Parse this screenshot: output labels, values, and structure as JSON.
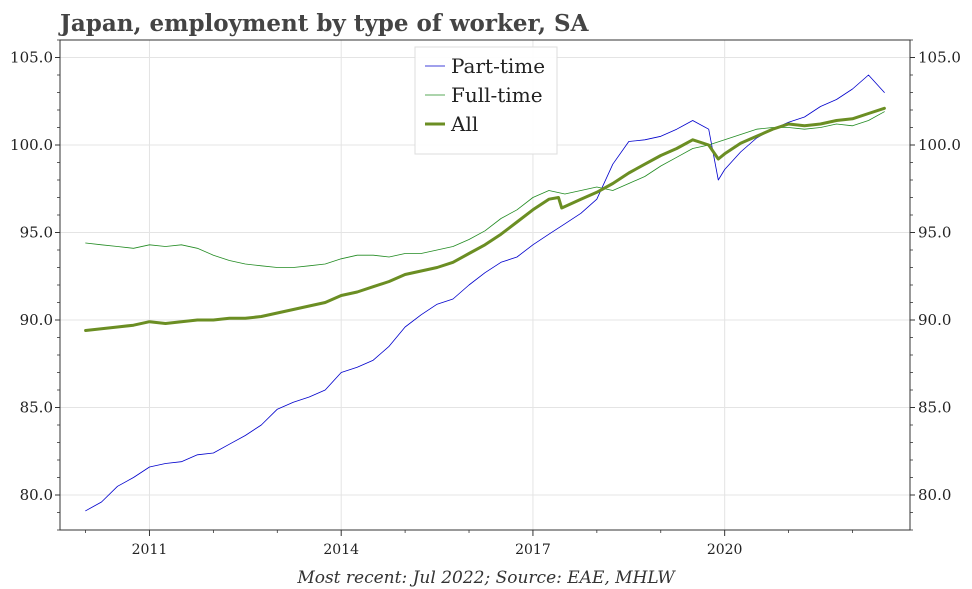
{
  "chart_data": {
    "type": "line",
    "title": "Japan, employment by type of worker, SA",
    "footer": "Most recent: Jul 2022; Source: EAE, MHLW",
    "xlabel": "",
    "ylabel": "",
    "xlim": [
      2009.6,
      2022.9
    ],
    "ylim": [
      78.0,
      106.0
    ],
    "x_ticks": [
      2011,
      2014,
      2017,
      2020
    ],
    "x_tick_labels": [
      "2011",
      "2014",
      "2017",
      "2020"
    ],
    "y_ticks": [
      80,
      85,
      90,
      95,
      100,
      105
    ],
    "y_tick_labels": [
      "80.0",
      "85.0",
      "90.0",
      "95.0",
      "100.0",
      "105.0"
    ],
    "grid": true,
    "legend_position": "top-center",
    "series": [
      {
        "name": "Part-time",
        "color": "#0000cc",
        "line_width": 0.8,
        "points": [
          [
            2010.0,
            79.1
          ],
          [
            2010.25,
            79.6
          ],
          [
            2010.5,
            80.5
          ],
          [
            2010.75,
            81.0
          ],
          [
            2011.0,
            81.6
          ],
          [
            2011.25,
            81.8
          ],
          [
            2011.5,
            81.9
          ],
          [
            2011.75,
            82.3
          ],
          [
            2012.0,
            82.4
          ],
          [
            2012.25,
            82.9
          ],
          [
            2012.5,
            83.4
          ],
          [
            2012.75,
            84.0
          ],
          [
            2013.0,
            84.9
          ],
          [
            2013.25,
            85.3
          ],
          [
            2013.5,
            85.6
          ],
          [
            2013.75,
            86.0
          ],
          [
            2014.0,
            87.0
          ],
          [
            2014.25,
            87.3
          ],
          [
            2014.5,
            87.7
          ],
          [
            2014.75,
            88.5
          ],
          [
            2015.0,
            89.6
          ],
          [
            2015.25,
            90.3
          ],
          [
            2015.5,
            90.9
          ],
          [
            2015.75,
            91.2
          ],
          [
            2016.0,
            92.0
          ],
          [
            2016.25,
            92.7
          ],
          [
            2016.5,
            93.3
          ],
          [
            2016.75,
            93.6
          ],
          [
            2017.0,
            94.3
          ],
          [
            2017.25,
            94.9
          ],
          [
            2017.5,
            95.5
          ],
          [
            2017.75,
            96.1
          ],
          [
            2018.0,
            96.9
          ],
          [
            2018.25,
            98.9
          ],
          [
            2018.5,
            100.2
          ],
          [
            2018.75,
            100.3
          ],
          [
            2019.0,
            100.5
          ],
          [
            2019.25,
            100.9
          ],
          [
            2019.5,
            101.4
          ],
          [
            2019.75,
            100.9
          ],
          [
            2019.9,
            98.0
          ],
          [
            2020.0,
            98.6
          ],
          [
            2020.25,
            99.6
          ],
          [
            2020.5,
            100.4
          ],
          [
            2020.75,
            100.9
          ],
          [
            2021.0,
            101.3
          ],
          [
            2021.25,
            101.6
          ],
          [
            2021.5,
            102.2
          ],
          [
            2021.75,
            102.6
          ],
          [
            2022.0,
            103.2
          ],
          [
            2022.25,
            104.0
          ],
          [
            2022.5,
            103.0
          ]
        ]
      },
      {
        "name": "Full-time",
        "color": "#228b22",
        "line_width": 0.8,
        "points": [
          [
            2010.0,
            94.4
          ],
          [
            2010.25,
            94.3
          ],
          [
            2010.5,
            94.2
          ],
          [
            2010.75,
            94.1
          ],
          [
            2011.0,
            94.3
          ],
          [
            2011.25,
            94.2
          ],
          [
            2011.5,
            94.3
          ],
          [
            2011.75,
            94.1
          ],
          [
            2012.0,
            93.7
          ],
          [
            2012.25,
            93.4
          ],
          [
            2012.5,
            93.2
          ],
          [
            2012.75,
            93.1
          ],
          [
            2013.0,
            93.0
          ],
          [
            2013.25,
            93.0
          ],
          [
            2013.5,
            93.1
          ],
          [
            2013.75,
            93.2
          ],
          [
            2014.0,
            93.5
          ],
          [
            2014.25,
            93.7
          ],
          [
            2014.5,
            93.7
          ],
          [
            2014.75,
            93.6
          ],
          [
            2015.0,
            93.8
          ],
          [
            2015.25,
            93.8
          ],
          [
            2015.5,
            94.0
          ],
          [
            2015.75,
            94.2
          ],
          [
            2016.0,
            94.6
          ],
          [
            2016.25,
            95.1
          ],
          [
            2016.5,
            95.8
          ],
          [
            2016.75,
            96.3
          ],
          [
            2017.0,
            97.0
          ],
          [
            2017.25,
            97.4
          ],
          [
            2017.5,
            97.2
          ],
          [
            2017.75,
            97.4
          ],
          [
            2018.0,
            97.6
          ],
          [
            2018.25,
            97.4
          ],
          [
            2018.5,
            97.8
          ],
          [
            2018.75,
            98.2
          ],
          [
            2019.0,
            98.8
          ],
          [
            2019.25,
            99.3
          ],
          [
            2019.5,
            99.8
          ],
          [
            2019.75,
            100.0
          ],
          [
            2020.0,
            100.3
          ],
          [
            2020.25,
            100.6
          ],
          [
            2020.5,
            100.9
          ],
          [
            2020.75,
            101.0
          ],
          [
            2021.0,
            101.0
          ],
          [
            2021.25,
            100.9
          ],
          [
            2021.5,
            101.0
          ],
          [
            2021.75,
            101.2
          ],
          [
            2022.0,
            101.1
          ],
          [
            2022.25,
            101.4
          ],
          [
            2022.5,
            101.9
          ]
        ]
      },
      {
        "name": "All",
        "color": "#6b8e23",
        "line_width": 3,
        "points": [
          [
            2010.0,
            89.4
          ],
          [
            2010.25,
            89.5
          ],
          [
            2010.5,
            89.6
          ],
          [
            2010.75,
            89.7
          ],
          [
            2011.0,
            89.9
          ],
          [
            2011.25,
            89.8
          ],
          [
            2011.5,
            89.9
          ],
          [
            2011.75,
            90.0
          ],
          [
            2012.0,
            90.0
          ],
          [
            2012.25,
            90.1
          ],
          [
            2012.5,
            90.1
          ],
          [
            2012.75,
            90.2
          ],
          [
            2013.0,
            90.4
          ],
          [
            2013.25,
            90.6
          ],
          [
            2013.5,
            90.8
          ],
          [
            2013.75,
            91.0
          ],
          [
            2014.0,
            91.4
          ],
          [
            2014.25,
            91.6
          ],
          [
            2014.5,
            91.9
          ],
          [
            2014.75,
            92.2
          ],
          [
            2015.0,
            92.6
          ],
          [
            2015.25,
            92.8
          ],
          [
            2015.5,
            93.0
          ],
          [
            2015.75,
            93.3
          ],
          [
            2016.0,
            93.8
          ],
          [
            2016.25,
            94.3
          ],
          [
            2016.5,
            94.9
          ],
          [
            2016.75,
            95.6
          ],
          [
            2017.0,
            96.3
          ],
          [
            2017.25,
            96.9
          ],
          [
            2017.4,
            97.0
          ],
          [
            2017.45,
            96.4
          ],
          [
            2017.75,
            96.9
          ],
          [
            2018.0,
            97.3
          ],
          [
            2018.25,
            97.8
          ],
          [
            2018.5,
            98.4
          ],
          [
            2018.75,
            98.9
          ],
          [
            2019.0,
            99.4
          ],
          [
            2019.25,
            99.8
          ],
          [
            2019.5,
            100.3
          ],
          [
            2019.75,
            100.0
          ],
          [
            2019.9,
            99.2
          ],
          [
            2020.0,
            99.5
          ],
          [
            2020.25,
            100.1
          ],
          [
            2020.5,
            100.5
          ],
          [
            2020.75,
            100.9
          ],
          [
            2021.0,
            101.2
          ],
          [
            2021.25,
            101.1
          ],
          [
            2021.5,
            101.2
          ],
          [
            2021.75,
            101.4
          ],
          [
            2022.0,
            101.5
          ],
          [
            2022.25,
            101.8
          ],
          [
            2022.5,
            102.1
          ]
        ]
      }
    ]
  }
}
